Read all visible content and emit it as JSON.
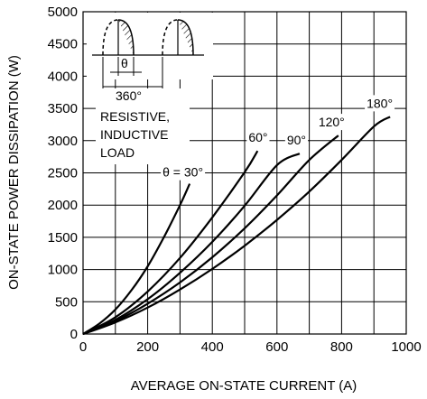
{
  "chart_data": {
    "type": "line",
    "title": "",
    "xlabel": "AVERAGE ON-STATE CURRENT  (A)",
    "ylabel": "ON-STATE POWER DISSIPATION  (W)",
    "xlim": [
      0,
      1000
    ],
    "ylim": [
      0,
      5000
    ],
    "x_ticks": [
      "0",
      "200",
      "400",
      "600",
      "800",
      "1000"
    ],
    "y_ticks": [
      "0",
      "500",
      "1000",
      "1500",
      "2000",
      "2500",
      "3000",
      "3500",
      "4000",
      "4500",
      "5000"
    ],
    "grid": true,
    "series": [
      {
        "name": "θ = 30°",
        "x": [
          0,
          50,
          100,
          150,
          200,
          250,
          300,
          330
        ],
        "y": [
          0,
          160,
          380,
          680,
          1050,
          1500,
          2000,
          2330
        ]
      },
      {
        "name": "60°",
        "x": [
          0,
          100,
          200,
          300,
          400,
          500,
          540
        ],
        "y": [
          0,
          260,
          660,
          1180,
          1810,
          2510,
          2840
        ]
      },
      {
        "name": "90°",
        "x": [
          0,
          100,
          200,
          300,
          400,
          500,
          600,
          670
        ],
        "y": [
          0,
          220,
          540,
          950,
          1430,
          1990,
          2620,
          2800
        ]
      },
      {
        "name": "120°",
        "x": [
          0,
          100,
          200,
          300,
          400,
          500,
          600,
          700,
          790
        ],
        "y": [
          0,
          200,
          470,
          800,
          1190,
          1640,
          2150,
          2700,
          3080
        ]
      },
      {
        "name": "180°",
        "x": [
          0,
          100,
          200,
          300,
          400,
          500,
          600,
          700,
          800,
          900,
          950
        ],
        "y": [
          0,
          180,
          410,
          690,
          1010,
          1370,
          1770,
          2210,
          2700,
          3220,
          3370
        ]
      }
    ],
    "annotations": {
      "waveform_angle": "θ",
      "waveform_period": "360°",
      "load_text": [
        "RESISTIVE,",
        "INDUCTIVE",
        "LOAD"
      ]
    }
  }
}
